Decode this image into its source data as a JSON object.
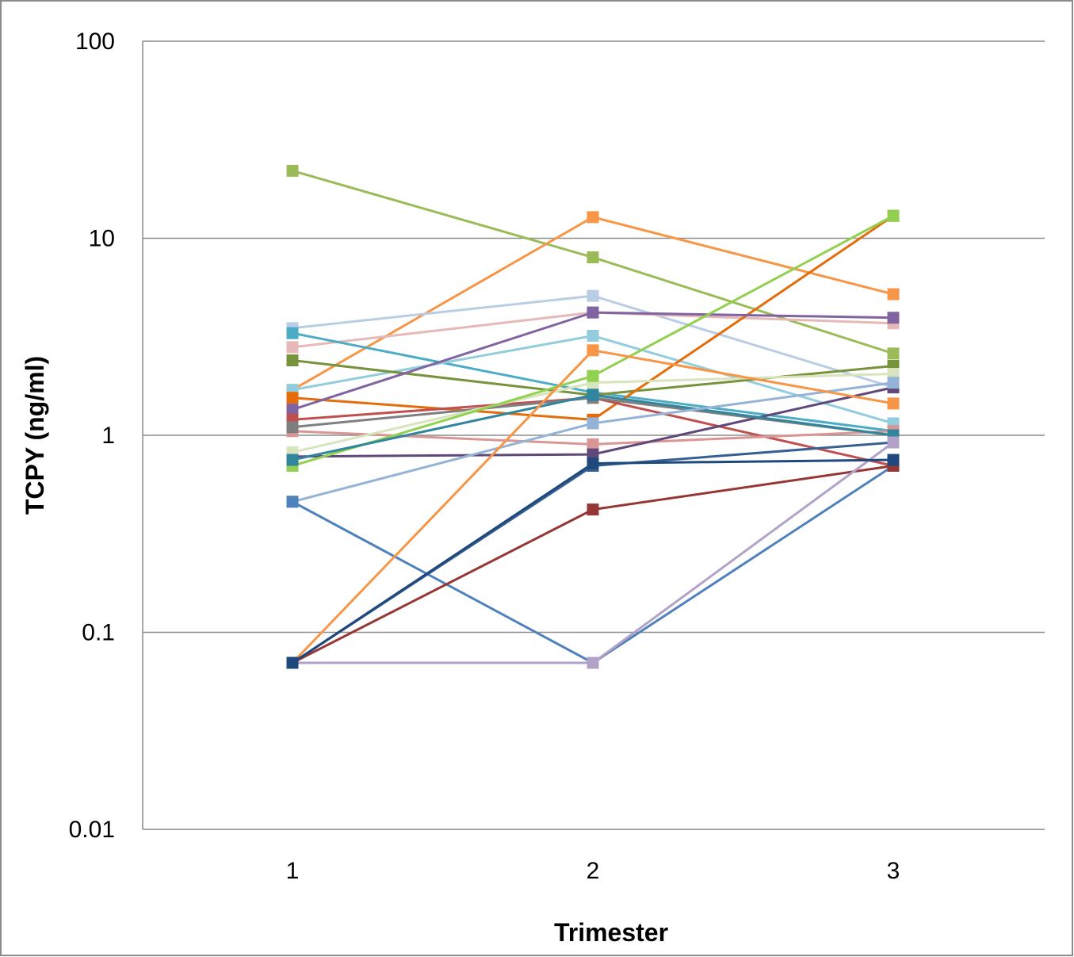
{
  "chart_data": {
    "type": "line",
    "title": "",
    "xlabel": "Trimester",
    "ylabel": "TCPY (ng/ml)",
    "y_scale": "log",
    "ylim": [
      0.01,
      100
    ],
    "y_ticks": [
      {
        "value": 100,
        "label": "100"
      },
      {
        "value": 10,
        "label": "10"
      },
      {
        "value": 1,
        "label": "1"
      },
      {
        "value": 0.1,
        "label": "0.1"
      },
      {
        "value": 0.01,
        "label": "0.01"
      }
    ],
    "x": [
      1,
      2,
      3
    ],
    "x_tick_labels": [
      "1",
      "2",
      "3"
    ],
    "grid": "horizontal",
    "legend": "none",
    "marker": "square",
    "series": [
      {
        "color": "#9BBB59",
        "values": [
          22,
          8,
          2.6
        ]
      },
      {
        "color": "#F79646",
        "values": [
          1.7,
          12.8,
          5.2
        ]
      },
      {
        "color": "#B9CDE5",
        "values": [
          3.5,
          5.1,
          1.75
        ]
      },
      {
        "color": "#E6B9B8",
        "values": [
          2.8,
          4.2,
          3.7
        ]
      },
      {
        "color": "#4BACC6",
        "values": [
          3.3,
          1.65,
          1.05
        ]
      },
      {
        "color": "#93CDDD",
        "values": [
          1.7,
          3.2,
          1.15
        ]
      },
      {
        "color": "#77933C",
        "values": [
          2.4,
          1.6,
          2.25
        ]
      },
      {
        "color": "#E46C0A",
        "values": [
          1.55,
          1.2,
          13
        ]
      },
      {
        "color": "#8064A2",
        "values": [
          1.35,
          4.2,
          3.95
        ]
      },
      {
        "color": "#C0504D",
        "values": [
          1.2,
          1.55,
          0.7
        ]
      },
      {
        "color": "#D99694",
        "values": [
          1.05,
          0.9,
          1.05
        ]
      },
      {
        "color": "#7F7F7F",
        "values": [
          1.1,
          1.55,
          1.0
        ]
      },
      {
        "color": "#60497A",
        "values": [
          0.78,
          0.8,
          1.75
        ]
      },
      {
        "color": "#D7E4BD",
        "values": [
          0.82,
          1.85,
          2.05
        ]
      },
      {
        "color": "#92D050",
        "values": [
          0.7,
          2.0,
          13
        ]
      },
      {
        "color": "#31859C",
        "values": [
          0.75,
          1.6,
          1.0
        ]
      },
      {
        "color": "#95B3D7",
        "values": [
          0.46,
          1.15,
          1.85
        ]
      },
      {
        "color": "#4F81BD",
        "values": [
          0.46,
          0.07,
          0.7
        ]
      },
      {
        "color": "#376092",
        "values": [
          0.07,
          0.7,
          0.92
        ]
      },
      {
        "color": "#953735",
        "values": [
          0.07,
          0.42,
          0.7
        ]
      },
      {
        "color": "#F79646",
        "values": [
          0.07,
          2.7,
          1.45
        ]
      },
      {
        "color": "#B3A2C7",
        "values": [
          0.07,
          0.07,
          0.92
        ]
      },
      {
        "color": "#1F497D",
        "values": [
          0.07,
          0.72,
          0.75
        ]
      }
    ]
  }
}
